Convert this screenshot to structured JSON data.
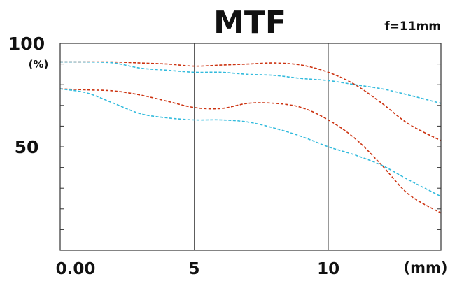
{
  "chart_data": {
    "type": "line",
    "title": "MTF",
    "subtitle": "f=11mm",
    "ylabel": "(%)",
    "xlabel": "(mm)",
    "xlim": [
      0,
      14.2
    ],
    "ylim": [
      0,
      100
    ],
    "x_ticks": [
      {
        "value": 0,
        "label": "0.00"
      },
      {
        "value": 5,
        "label": "5"
      },
      {
        "value": 10,
        "label": "10"
      }
    ],
    "y_ticks": [
      {
        "value": 100,
        "label": "100"
      },
      {
        "value": 50,
        "label": "50"
      }
    ],
    "vertical_gridlines": [
      5,
      10
    ],
    "y_minor_tick_step": 10,
    "colors": {
      "red": "#cc3311",
      "blue": "#33bbdd",
      "frame": "#333333",
      "grid": "#555555"
    },
    "series": [
      {
        "color": "#cc3311",
        "x": [
          0,
          1,
          2,
          3,
          4,
          5,
          6,
          7,
          8,
          9,
          10,
          11,
          12,
          13,
          14.2
        ],
        "values": [
          91,
          91,
          91,
          90.5,
          90,
          89,
          89.5,
          90,
          90.5,
          89.5,
          86,
          80,
          71,
          61,
          53
        ]
      },
      {
        "color": "#33bbdd",
        "x": [
          0,
          1,
          2,
          3,
          4,
          5,
          6,
          7,
          8,
          9,
          10,
          11,
          12,
          13,
          14.2
        ],
        "values": [
          91,
          91,
          90.5,
          88,
          87,
          86,
          86,
          85,
          84.5,
          83,
          82,
          80,
          78,
          75,
          71
        ]
      },
      {
        "color": "#cc3311",
        "x": [
          0,
          1,
          2,
          3,
          4,
          5,
          6,
          7,
          8,
          9,
          10,
          11,
          12,
          13,
          14.2
        ],
        "values": [
          78,
          77.5,
          77,
          75,
          72,
          69,
          68.5,
          71,
          71,
          69,
          63,
          54,
          41,
          27,
          18
        ]
      },
      {
        "color": "#33bbdd",
        "x": [
          0,
          1,
          2,
          3,
          4,
          5,
          6,
          7,
          8,
          9,
          10,
          11,
          12,
          13,
          14.2
        ],
        "values": [
          78,
          76,
          71,
          66,
          64,
          63,
          63,
          62,
          59,
          55,
          50,
          46,
          41,
          34,
          26
        ]
      }
    ]
  }
}
